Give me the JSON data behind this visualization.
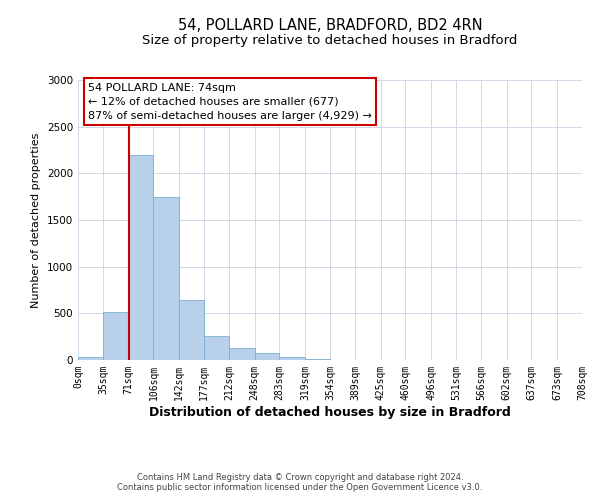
{
  "title1": "54, POLLARD LANE, BRADFORD, BD2 4RN",
  "title2": "Size of property relative to detached houses in Bradford",
  "xlabel": "Distribution of detached houses by size in Bradford",
  "ylabel": "Number of detached properties",
  "bin_edges": [
    0,
    35,
    71,
    106,
    142,
    177,
    212,
    248,
    283,
    319,
    354,
    389,
    425,
    460,
    496,
    531,
    566,
    602,
    637,
    673,
    708
  ],
  "bin_counts": [
    30,
    510,
    2200,
    1750,
    640,
    260,
    130,
    70,
    30,
    15,
    5,
    5,
    2,
    1,
    0,
    0,
    0,
    0,
    0,
    0
  ],
  "bar_color": "#b8d0ea",
  "bar_edge_color": "#7bafd4",
  "vline_color": "#cc0000",
  "annotation_line1": "54 POLLARD LANE: 74sqm",
  "annotation_line2": "← 12% of detached houses are smaller (677)",
  "annotation_line3": "87% of semi-detached houses are larger (4,929) →",
  "annotation_box_color": "#ffffff",
  "annotation_box_edge_color": "#cc0000",
  "ylim": [
    0,
    3000
  ],
  "tick_labels": [
    "0sqm",
    "35sqm",
    "71sqm",
    "106sqm",
    "142sqm",
    "177sqm",
    "212sqm",
    "248sqm",
    "283sqm",
    "319sqm",
    "354sqm",
    "389sqm",
    "425sqm",
    "460sqm",
    "496sqm",
    "531sqm",
    "566sqm",
    "602sqm",
    "637sqm",
    "673sqm",
    "708sqm"
  ],
  "footnote1": "Contains HM Land Registry data © Crown copyright and database right 2024.",
  "footnote2": "Contains public sector information licensed under the Open Government Licence v3.0.",
  "background_color": "#ffffff",
  "grid_color": "#d0d8e8",
  "title_fontsize": 10.5,
  "subtitle_fontsize": 9.5,
  "ylabel_fontsize": 8,
  "xlabel_fontsize": 9,
  "tick_fontsize": 7,
  "annotation_fontsize": 8,
  "footnote_fontsize": 6
}
